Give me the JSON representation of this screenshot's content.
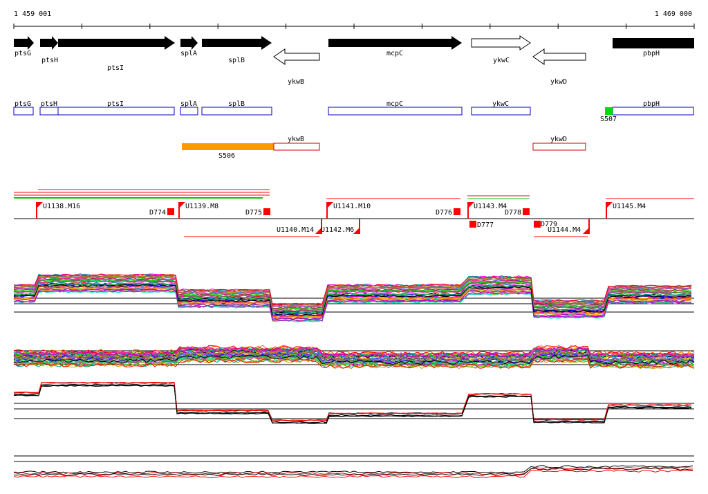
{
  "coordinate_range": {
    "start_label": "1 459 001",
    "end_label": "1 469 000"
  },
  "colors": {
    "gene_fill": "#000000",
    "annotation_box": "#0000cc",
    "region_box": "#cc0000",
    "sigma_orange": "#ff9900",
    "sigma_green": "#00dd00",
    "marker_red": "#ff0000",
    "trace_black": "#000000",
    "trace_red": "#ff0000"
  },
  "genes": [
    {
      "name": "ptsG",
      "strand": "+",
      "filled": true
    },
    {
      "name": "ptsH",
      "strand": "+",
      "filled": true
    },
    {
      "name": "ptsI",
      "strand": "+",
      "filled": true
    },
    {
      "name": "splA",
      "strand": "+",
      "filled": true
    },
    {
      "name": "splB",
      "strand": "+",
      "filled": true
    },
    {
      "name": "ykwB",
      "strand": "-",
      "filled": false
    },
    {
      "name": "mcpC",
      "strand": "+",
      "filled": true
    },
    {
      "name": "ykwC",
      "strand": "+",
      "filled": false
    },
    {
      "name": "ykwD",
      "strand": "-",
      "filled": false
    },
    {
      "name": "pbpH",
      "strand": "+",
      "filled": true
    }
  ],
  "annotation_boxes": [
    "ptsG",
    "ptsH",
    "ptsI",
    "splA",
    "splB",
    "mcpC",
    "ykwC",
    "pbpH"
  ],
  "antisense_boxes": [
    "ykwB",
    "ykwD"
  ],
  "sigma_sites": [
    {
      "label": "S506",
      "color": "orange"
    },
    {
      "label": "S507",
      "color": "green"
    }
  ],
  "upshifts": [
    "U1138.M16",
    "U1139.M8",
    "U1141.M10",
    "U1143.M4",
    "U1145.M4",
    "U1140.M14",
    "U1142.M6",
    "U1144.M4"
  ],
  "downshifts": [
    "D774",
    "D775",
    "D776",
    "D777",
    "D778",
    "D779"
  ],
  "tracks": [
    {
      "name": "expression-profiles-sense"
    },
    {
      "name": "expression-profiles-antisense"
    },
    {
      "name": "summary-sense"
    },
    {
      "name": "summary-antisense"
    }
  ]
}
